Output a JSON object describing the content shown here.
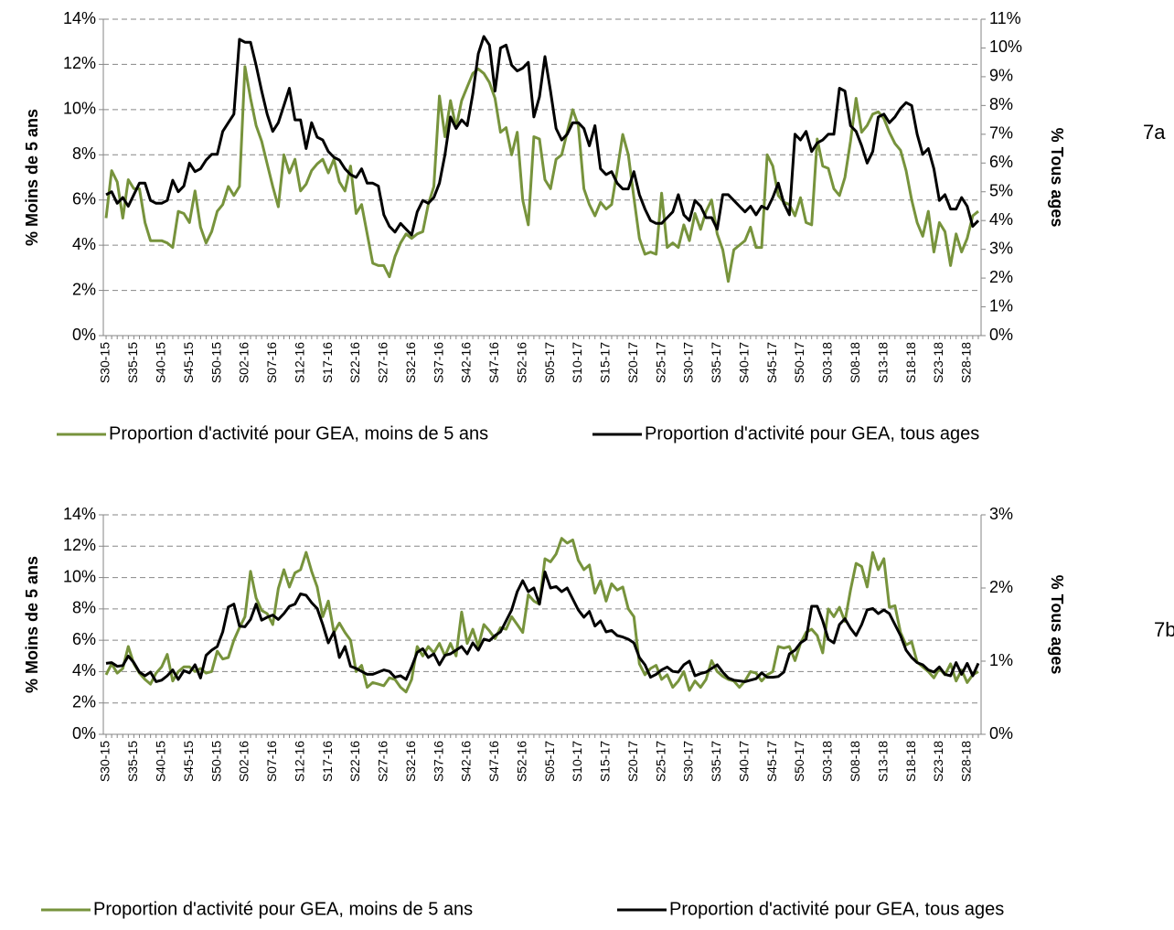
{
  "chart_data": [
    {
      "type": "line",
      "panel_label": "7a",
      "ylabel": "% Moins de 5 ans",
      "y2label": "% Tous ages",
      "grid": true,
      "categories": [
        "S30-15",
        null,
        null,
        null,
        null,
        "S35-15",
        null,
        null,
        null,
        null,
        "S40-15",
        null,
        null,
        null,
        null,
        "S45-15",
        null,
        null,
        null,
        null,
        "S50-15",
        null,
        null,
        null,
        null,
        "S02-16",
        null,
        null,
        null,
        null,
        "S07-16",
        null,
        null,
        null,
        null,
        "S12-16",
        null,
        null,
        null,
        null,
        "S17-16",
        null,
        null,
        null,
        null,
        "S22-16",
        null,
        null,
        null,
        null,
        "S27-16",
        null,
        null,
        null,
        null,
        "S32-16",
        null,
        null,
        null,
        null,
        "S37-16",
        null,
        null,
        null,
        null,
        "S42-16",
        null,
        null,
        null,
        null,
        "S47-16",
        null,
        null,
        null,
        null,
        "S52-16",
        null,
        null,
        null,
        null,
        "S05-17",
        null,
        null,
        null,
        null,
        "S10-17",
        null,
        null,
        null,
        null,
        "S15-17",
        null,
        null,
        null,
        null,
        "S20-17",
        null,
        null,
        null,
        null,
        "S25-17",
        null,
        null,
        null,
        null,
        "S30-17",
        null,
        null,
        null,
        null,
        "S35-17",
        null,
        null,
        null,
        null,
        "S40-17",
        null,
        null,
        null,
        null,
        "S45-17",
        null,
        null,
        null,
        null,
        "S50-17",
        null,
        null,
        null,
        null,
        "S03-18",
        null,
        null,
        null,
        null,
        "S08-18",
        null,
        null,
        null,
        null,
        "S13-18",
        null,
        null,
        null,
        null,
        "S18-18",
        null,
        null,
        null,
        null,
        "S23-18",
        null,
        null,
        null,
        null,
        "S28-18",
        null,
        null
      ],
      "ylim": [
        0,
        14
      ],
      "yticks": [
        {
          "value": 0,
          "label": "0%"
        },
        {
          "value": 2,
          "label": "2%"
        },
        {
          "value": 4,
          "label": "4%"
        },
        {
          "value": 6,
          "label": "6%"
        },
        {
          "value": 8,
          "label": "8%"
        },
        {
          "value": 10,
          "label": "10%"
        },
        {
          "value": 12,
          "label": "12%"
        },
        {
          "value": 14,
          "label": "14%"
        }
      ],
      "y2lim": [
        0,
        11
      ],
      "y2ticks": [
        {
          "value": 0,
          "label": "0%"
        },
        {
          "value": 1,
          "label": "1%"
        },
        {
          "value": 2,
          "label": "2%"
        },
        {
          "value": 3,
          "label": "3%"
        },
        {
          "value": 4,
          "label": "4%"
        },
        {
          "value": 5,
          "label": "5%"
        },
        {
          "value": 6,
          "label": "6%"
        },
        {
          "value": 7,
          "label": "7%"
        },
        {
          "value": 8,
          "label": "8%"
        },
        {
          "value": 9,
          "label": "9%"
        },
        {
          "value": 10,
          "label": "10%"
        },
        {
          "value": 11,
          "label": "11%"
        }
      ],
      "series": [
        {
          "name": "Proportion d'activité pour GEA, moins de 5 ans",
          "color": "#77933c",
          "values": [
            5.2,
            7.3,
            6.8,
            5.2,
            6.9,
            6.5,
            6.5,
            5.0,
            4.2,
            4.2,
            4.2,
            4.1,
            3.9,
            5.5,
            5.4,
            5.0,
            6.4,
            4.8,
            4.1,
            4.6,
            5.5,
            5.8,
            6.6,
            6.2,
            6.6,
            11.9,
            10.5,
            9.3,
            8.6,
            7.6,
            6.6,
            5.7,
            8.0,
            7.2,
            7.8,
            6.4,
            6.7,
            7.3,
            7.6,
            7.8,
            7.2,
            7.8,
            6.8,
            6.4,
            7.5,
            5.4,
            5.8,
            4.5,
            3.2,
            3.1,
            3.1,
            2.6,
            3.5,
            4.1,
            4.5,
            4.3,
            4.5,
            4.6,
            5.8,
            6.6,
            10.6,
            8.8,
            10.4,
            9.2,
            10.4,
            11.0,
            11.6,
            11.8,
            11.6,
            11.2,
            10.5,
            9.0,
            9.2,
            8.0,
            9.0,
            6.0,
            4.9,
            8.8,
            8.7,
            6.9,
            6.5,
            7.8,
            8.0,
            9.0,
            10.0,
            9.3,
            6.5,
            5.8,
            5.3,
            5.9,
            5.6,
            5.8,
            7.3,
            8.9,
            8.0,
            6.1,
            4.3,
            3.6,
            3.7,
            3.6,
            6.3,
            3.9,
            4.1,
            3.9,
            4.9,
            4.2,
            5.4,
            4.7,
            5.5,
            6.0,
            4.5,
            3.8,
            2.4,
            3.8,
            4.0,
            4.2,
            4.8,
            3.9,
            3.9,
            8.0,
            7.5,
            6.2,
            5.9,
            5.8,
            5.3,
            6.1,
            5.0,
            4.9,
            8.7,
            7.5,
            7.4,
            6.5,
            6.2,
            7.0,
            8.6,
            10.5,
            9.0,
            9.3,
            9.8,
            9.9,
            9.6,
            9.0,
            8.5,
            8.2,
            7.3,
            6.0,
            5.0,
            4.4,
            5.5,
            3.7,
            5.0,
            4.6,
            3.1,
            4.5,
            3.7,
            4.3,
            5.3,
            5.5
          ]
        },
        {
          "name": "Proportion d'activité pour GEA, tous ages",
          "color": "#000000",
          "axis": "y2",
          "values": [
            4.9,
            5.0,
            4.6,
            4.8,
            4.5,
            4.9,
            5.3,
            5.3,
            4.7,
            4.6,
            4.6,
            4.7,
            5.4,
            5.0,
            5.2,
            6.0,
            5.7,
            5.8,
            6.1,
            6.3,
            6.3,
            7.1,
            7.4,
            7.7,
            10.3,
            10.2,
            10.2,
            9.4,
            8.5,
            7.7,
            7.1,
            7.4,
            8.0,
            8.6,
            7.5,
            7.5,
            6.5,
            7.4,
            6.9,
            6.8,
            6.4,
            6.2,
            6.1,
            5.8,
            5.6,
            5.5,
            5.8,
            5.3,
            5.3,
            5.2,
            4.2,
            3.8,
            3.6,
            3.9,
            3.7,
            3.5,
            4.3,
            4.7,
            4.6,
            4.8,
            5.3,
            6.3,
            7.6,
            7.2,
            7.5,
            7.3,
            8.4,
            9.8,
            10.4,
            10.1,
            8.5,
            10.0,
            10.1,
            9.4,
            9.2,
            9.3,
            9.5,
            7.6,
            8.3,
            9.7,
            8.5,
            7.2,
            6.8,
            7.0,
            7.4,
            7.4,
            7.2,
            6.6,
            7.3,
            5.8,
            5.6,
            5.7,
            5.3,
            5.1,
            5.1,
            5.7,
            4.9,
            4.4,
            4.0,
            3.9,
            3.9,
            4.1,
            4.3,
            4.9,
            4.2,
            4.0,
            4.7,
            4.5,
            4.1,
            4.1,
            3.7,
            4.9,
            4.9,
            4.7,
            4.5,
            4.3,
            4.5,
            4.2,
            4.5,
            4.4,
            4.8,
            5.3,
            4.6,
            4.2,
            7.0,
            6.8,
            7.1,
            6.4,
            6.7,
            6.8,
            7.0,
            7.0,
            8.6,
            8.5,
            7.3,
            7.1,
            6.6,
            6.0,
            6.4,
            7.6,
            7.7,
            7.4,
            7.6,
            7.9,
            8.1,
            8.0,
            7.0,
            6.3,
            6.5,
            5.8,
            4.7,
            4.9,
            4.4,
            4.4,
            4.8,
            4.5,
            3.8,
            4.0
          ]
        }
      ]
    },
    {
      "type": "line",
      "panel_label": "7b",
      "ylabel": "% Moins de 5 ans",
      "y2label": "% Tous ages",
      "grid": true,
      "categories": [
        "S30-15",
        null,
        null,
        null,
        null,
        "S35-15",
        null,
        null,
        null,
        null,
        "S40-15",
        null,
        null,
        null,
        null,
        "S45-15",
        null,
        null,
        null,
        null,
        "S50-15",
        null,
        null,
        null,
        null,
        "S02-16",
        null,
        null,
        null,
        null,
        "S07-16",
        null,
        null,
        null,
        null,
        "S12-16",
        null,
        null,
        null,
        null,
        "S17-16",
        null,
        null,
        null,
        null,
        "S22-16",
        null,
        null,
        null,
        null,
        "S27-16",
        null,
        null,
        null,
        null,
        "S32-16",
        null,
        null,
        null,
        null,
        "S37-16",
        null,
        null,
        null,
        null,
        "S42-16",
        null,
        null,
        null,
        null,
        "S47-16",
        null,
        null,
        null,
        null,
        "S52-16",
        null,
        null,
        null,
        null,
        "S05-17",
        null,
        null,
        null,
        null,
        "S10-17",
        null,
        null,
        null,
        null,
        "S15-17",
        null,
        null,
        null,
        null,
        "S20-17",
        null,
        null,
        null,
        null,
        "S25-17",
        null,
        null,
        null,
        null,
        "S30-17",
        null,
        null,
        null,
        null,
        "S35-17",
        null,
        null,
        null,
        null,
        "S40-17",
        null,
        null,
        null,
        null,
        "S45-17",
        null,
        null,
        null,
        null,
        "S50-17",
        null,
        null,
        null,
        null,
        "S03-18",
        null,
        null,
        null,
        null,
        "S08-18",
        null,
        null,
        null,
        null,
        "S13-18",
        null,
        null,
        null,
        null,
        "S18-18",
        null,
        null,
        null,
        null,
        "S23-18",
        null,
        null,
        null,
        null,
        "S28-18",
        null,
        null
      ],
      "ylim": [
        0,
        14
      ],
      "yticks": [
        {
          "value": 0,
          "label": "0%"
        },
        {
          "value": 2,
          "label": "2%"
        },
        {
          "value": 4,
          "label": "4%"
        },
        {
          "value": 6,
          "label": "6%"
        },
        {
          "value": 8,
          "label": "8%"
        },
        {
          "value": 10,
          "label": "10%"
        },
        {
          "value": 12,
          "label": "12%"
        },
        {
          "value": 14,
          "label": "14%"
        }
      ],
      "y2lim": [
        0,
        3
      ],
      "y2ticks": [
        {
          "value": 0,
          "label": "0%"
        },
        {
          "value": 1,
          "label": "1%"
        },
        {
          "value": 2,
          "label": "2%"
        },
        {
          "value": 3,
          "label": "3%"
        }
      ],
      "series": [
        {
          "name": "Proportion d'activité pour GEA, moins de 5 ans",
          "color": "#77933c",
          "values": [
            3.8,
            4.5,
            3.9,
            4.2,
            5.6,
            4.5,
            3.9,
            3.5,
            3.2,
            3.9,
            4.3,
            5.1,
            3.4,
            4.0,
            4.3,
            4.3,
            4.0,
            4.2,
            3.9,
            4.0,
            5.3,
            4.8,
            4.9,
            6.0,
            6.8,
            7.5,
            10.4,
            8.7,
            7.9,
            7.7,
            7.0,
            9.3,
            10.5,
            9.4,
            10.3,
            10.5,
            11.6,
            10.4,
            9.4,
            7.5,
            8.5,
            6.5,
            7.1,
            6.5,
            6.0,
            4.0,
            4.4,
            3.0,
            3.3,
            3.2,
            3.1,
            3.6,
            3.5,
            3.0,
            2.7,
            3.5,
            5.6,
            5.0,
            5.6,
            5.2,
            5.8,
            5.0,
            5.8,
            5.0,
            7.8,
            5.8,
            6.7,
            5.6,
            7.0,
            6.6,
            6.1,
            6.8,
            6.7,
            7.5,
            7.0,
            6.5,
            8.9,
            8.5,
            8.3,
            11.2,
            11.0,
            11.5,
            12.5,
            12.2,
            12.4,
            11.1,
            10.5,
            10.8,
            9.0,
            9.8,
            8.5,
            9.6,
            9.2,
            9.4,
            8.0,
            7.5,
            4.5,
            3.8,
            4.2,
            4.4,
            3.5,
            3.8,
            3.0,
            3.4,
            4.0,
            2.8,
            3.4,
            3.0,
            3.5,
            4.7,
            4.0,
            3.7,
            3.5,
            3.4,
            3.0,
            3.4,
            4.0,
            3.9,
            3.4,
            3.8,
            4.0,
            5.6,
            5.5,
            5.6,
            4.7,
            5.8,
            6.5,
            6.7,
            6.3,
            5.2,
            8.0,
            7.5,
            8.1,
            7.2,
            9.2,
            10.9,
            10.7,
            9.4,
            11.6,
            10.5,
            11.2,
            8.1,
            8.2,
            6.5,
            5.7,
            5.9,
            4.6,
            4.3,
            4.0,
            3.6,
            4.2,
            3.8,
            4.5,
            3.4,
            4.1,
            3.3,
            3.8,
            4.0
          ]
        },
        {
          "name": "Proportion d'activité pour GEA, tous ages",
          "color": "#000000",
          "axis": "y2",
          "values": [
            0.97,
            0.98,
            0.93,
            0.94,
            1.07,
            0.98,
            0.85,
            0.8,
            0.85,
            0.72,
            0.74,
            0.8,
            0.88,
            0.75,
            0.87,
            0.84,
            0.95,
            0.77,
            1.08,
            1.15,
            1.2,
            1.4,
            1.74,
            1.78,
            1.48,
            1.47,
            1.57,
            1.78,
            1.56,
            1.6,
            1.63,
            1.57,
            1.65,
            1.75,
            1.78,
            1.92,
            1.9,
            1.8,
            1.72,
            1.5,
            1.25,
            1.4,
            1.05,
            1.2,
            0.93,
            0.9,
            0.86,
            0.82,
            0.82,
            0.85,
            0.88,
            0.86,
            0.78,
            0.8,
            0.75,
            0.92,
            1.12,
            1.17,
            1.05,
            1.1,
            0.95,
            1.08,
            1.1,
            1.15,
            1.2,
            1.1,
            1.25,
            1.15,
            1.3,
            1.28,
            1.35,
            1.4,
            1.55,
            1.7,
            1.95,
            2.1,
            1.95,
            2.0,
            1.78,
            2.22,
            2.0,
            2.02,
            1.95,
            2.0,
            1.85,
            1.7,
            1.6,
            1.68,
            1.48,
            1.55,
            1.4,
            1.42,
            1.35,
            1.33,
            1.3,
            1.25,
            1.05,
            0.95,
            0.78,
            0.82,
            0.88,
            0.92,
            0.86,
            0.85,
            0.95,
            1.0,
            0.8,
            0.83,
            0.85,
            0.9,
            0.95,
            0.85,
            0.77,
            0.74,
            0.73,
            0.72,
            0.74,
            0.76,
            0.84,
            0.78,
            0.78,
            0.79,
            0.85,
            1.1,
            1.15,
            1.25,
            1.3,
            1.75,
            1.75,
            1.55,
            1.3,
            1.25,
            1.5,
            1.58,
            1.45,
            1.35,
            1.5,
            1.7,
            1.72,
            1.65,
            1.7,
            1.65,
            1.5,
            1.35,
            1.15,
            1.05,
            0.98,
            0.95,
            0.88,
            0.85,
            0.92,
            0.82,
            0.8,
            0.98,
            0.82,
            0.97,
            0.8,
            0.97
          ]
        }
      ]
    }
  ]
}
